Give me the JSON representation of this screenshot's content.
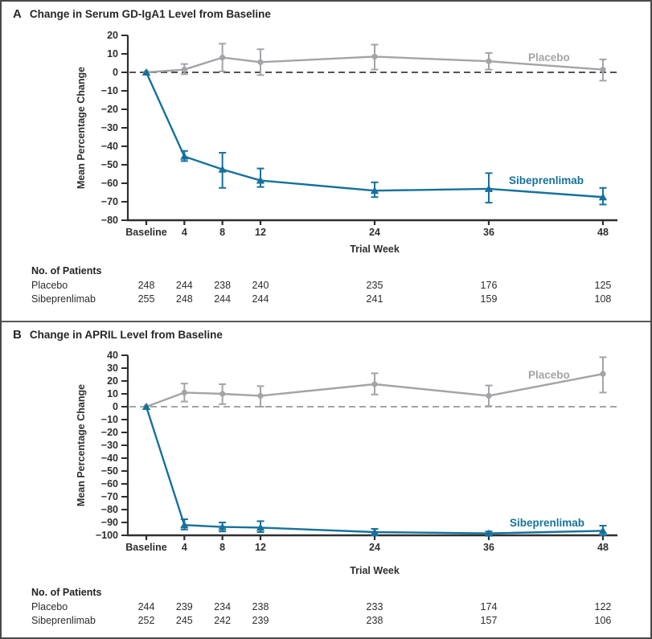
{
  "figure_colors": {
    "placebo": "#a2a4a7",
    "sibeprenlimab": "#16719c",
    "axis": "#2d2f31",
    "border": "#47484a"
  },
  "chart_data": [
    {
      "type": "line",
      "panel_label": "A",
      "title": "Change in Serum GD-IgA1 Level from Baseline",
      "xlabel": "Trial Week",
      "ylabel": "Mean Percentage Change",
      "x_weeks": [
        0,
        4,
        8,
        12,
        24,
        36,
        48
      ],
      "x_tick_labels": [
        "Baseline",
        "4",
        "8",
        "12",
        "24",
        "36",
        "48"
      ],
      "ylim": [
        -80,
        20
      ],
      "ytick_step": 10,
      "y_tick_labels": [
        "20",
        "10",
        "0",
        "−10",
        "−20",
        "−30",
        "−40",
        "−50",
        "−60",
        "−70",
        "−80"
      ],
      "zero_line_dashed": true,
      "zero_line_color": "#3b3b3b",
      "legend_position": "inline-labels",
      "grid": false,
      "series": [
        {
          "name": "Placebo",
          "color": "#a2a4a7",
          "marker": "circle",
          "values": [
            0,
            1.5,
            8,
            5.5,
            8.5,
            6,
            1.5
          ],
          "err_lo": [
            0,
            -1,
            0.5,
            -1.5,
            1.5,
            1.5,
            -4.5
          ],
          "err_hi": [
            0,
            4.5,
            15.5,
            12.5,
            15,
            10.5,
            7
          ]
        },
        {
          "name": "Sibeprenlimab",
          "color": "#16719c",
          "marker": "triangle",
          "values": [
            0,
            -45.5,
            -52.5,
            -58.5,
            -64,
            -63,
            -67.5
          ],
          "err_lo": [
            0,
            -48,
            -62.5,
            -62,
            -67.5,
            -70.5,
            -71.5
          ],
          "err_hi": [
            0,
            -42.5,
            -43.5,
            -52,
            -59.5,
            -54.5,
            -62.5
          ]
        }
      ],
      "patients": {
        "header": "No. of Patients",
        "rows": [
          {
            "label": "Placebo",
            "counts": [
              "248",
              "244",
              "238",
              "240",
              "235",
              "176",
              "125"
            ]
          },
          {
            "label": "Sibeprenlimab",
            "counts": [
              "255",
              "248",
              "244",
              "244",
              "241",
              "159",
              "108"
            ]
          }
        ]
      }
    },
    {
      "type": "line",
      "panel_label": "B",
      "title": "Change in APRIL Level from Baseline",
      "xlabel": "Trial Week",
      "ylabel": "Mean Percentage Change",
      "x_weeks": [
        0,
        4,
        8,
        12,
        24,
        36,
        48
      ],
      "x_tick_labels": [
        "Baseline",
        "4",
        "8",
        "12",
        "24",
        "36",
        "48"
      ],
      "ylim": [
        -100,
        40
      ],
      "ytick_step": 10,
      "y_tick_labels": [
        "40",
        "30",
        "20",
        "10",
        "0",
        "−10",
        "−20",
        "−30",
        "−40",
        "−50",
        "−60",
        "−70",
        "−80",
        "−90",
        "−100"
      ],
      "zero_line_dashed": true,
      "zero_line_color": "#96989b",
      "legend_position": "inline-labels",
      "grid": false,
      "series": [
        {
          "name": "Placebo",
          "color": "#a2a4a7",
          "marker": "circle",
          "values": [
            0,
            11,
            10,
            8.5,
            17.5,
            8.5,
            25.5
          ],
          "err_lo": [
            0,
            4,
            2,
            0,
            9.5,
            0.5,
            11
          ],
          "err_hi": [
            0,
            18,
            17.5,
            16,
            26,
            16.5,
            38.5
          ]
        },
        {
          "name": "Sibeprenlimab",
          "color": "#16719c",
          "marker": "triangle",
          "values": [
            0,
            -92,
            -93.5,
            -94,
            -97.5,
            -98.5,
            -96.5
          ],
          "err_lo": [
            0,
            -95.5,
            -97,
            -97.5,
            -100,
            -100,
            -100
          ],
          "err_hi": [
            0,
            -87.5,
            -90,
            -89,
            -95,
            -97,
            -92.5
          ]
        }
      ],
      "patients": {
        "header": "No. of Patients",
        "rows": [
          {
            "label": "Placebo",
            "counts": [
              "244",
              "239",
              "234",
              "238",
              "233",
              "174",
              "122"
            ]
          },
          {
            "label": "Sibeprenlimab",
            "counts": [
              "252",
              "245",
              "242",
              "239",
              "238",
              "157",
              "106"
            ]
          }
        ]
      }
    }
  ]
}
